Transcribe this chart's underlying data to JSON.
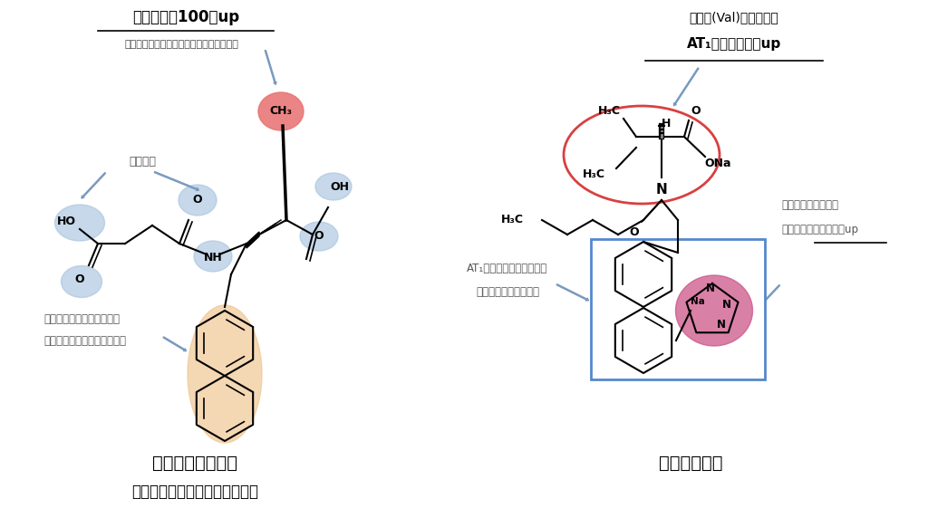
{
  "bg_color": "#ffffff",
  "title_left_line1": "阻害活性約100倍up",
  "title_left_line2": "（疎水性相互作用＋結合部位への固定化）",
  "title_right_line1": "バリン(Val)構造により",
  "title_right_line2": "AT₁受容体選択性up",
  "label_suiso": "水素結合",
  "label_ketsugo1": "結合部位の深くに入り込み",
  "label_ketsugo2": "疎水性相互作用により安定化",
  "label_at1_line1": "AT₁受容体阻害の必須構造",
  "label_at1_line2": "（アドレスドメイン）",
  "label_karubon1": "カルボン酸等価体の",
  "label_karubon2": "テトラゾールで脂溶性up",
  "name_left1": "サクビトリラート",
  "name_left2": "（サクビトリルの活性代謝物）",
  "name_right": "バルサルタン",
  "arrow_color": "#7a9abf",
  "circle_blue": "#a8c4e0",
  "circle_red_fill": "#e87070",
  "circle_red_stroke": "#d94040",
  "circle_orange_fill": "#f0c896",
  "circle_pink_fill": "#cc5588",
  "box_blue_stroke": "#5588cc",
  "lc": "black",
  "lw": 1.5
}
